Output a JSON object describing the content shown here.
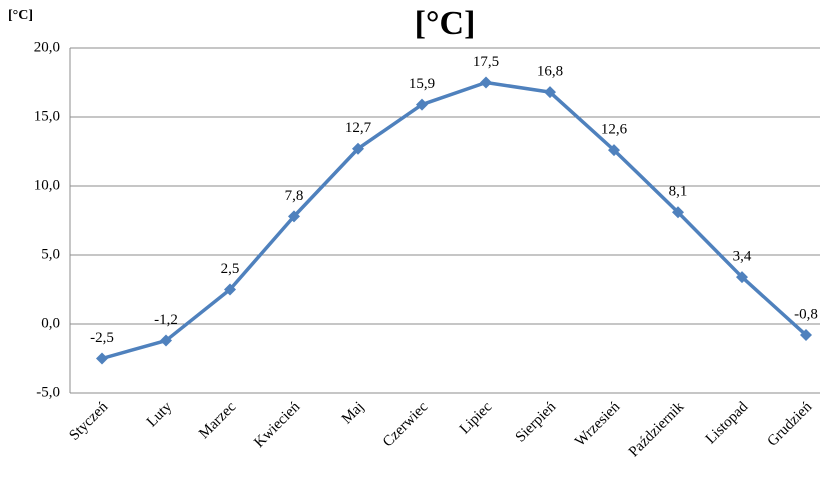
{
  "chart_data": {
    "type": "line",
    "title": "[°C]",
    "y_label": "[°C]",
    "categories": [
      "Styczeń",
      "Luty",
      "Marzec",
      "Kwiecień",
      "Maj",
      "Czerwiec",
      "Lipiec",
      "Sierpień",
      "Wrzesień",
      "Październik",
      "Listopad",
      "Grudzień"
    ],
    "values": [
      -2.5,
      -1.2,
      2.5,
      7.8,
      12.7,
      15.9,
      17.5,
      16.8,
      12.6,
      8.1,
      3.4,
      -0.8
    ],
    "value_labels": [
      "-2,5",
      "-1,2",
      "2,5",
      "7,8",
      "12,7",
      "15,9",
      "17,5",
      "16,8",
      "12,6",
      "8,1",
      "3,4",
      "-0,8"
    ],
    "color": "#4f81bd",
    "ylim": [
      -5,
      20
    ],
    "yticks": [
      {
        "value": -5,
        "label": "-5,0"
      },
      {
        "value": 0,
        "label": "0,0"
      },
      {
        "value": 5,
        "label": "5,0"
      },
      {
        "value": 10,
        "label": "10,0"
      },
      {
        "value": 15,
        "label": "15,0"
      },
      {
        "value": 20,
        "label": "20,0"
      }
    ],
    "grid": true
  }
}
